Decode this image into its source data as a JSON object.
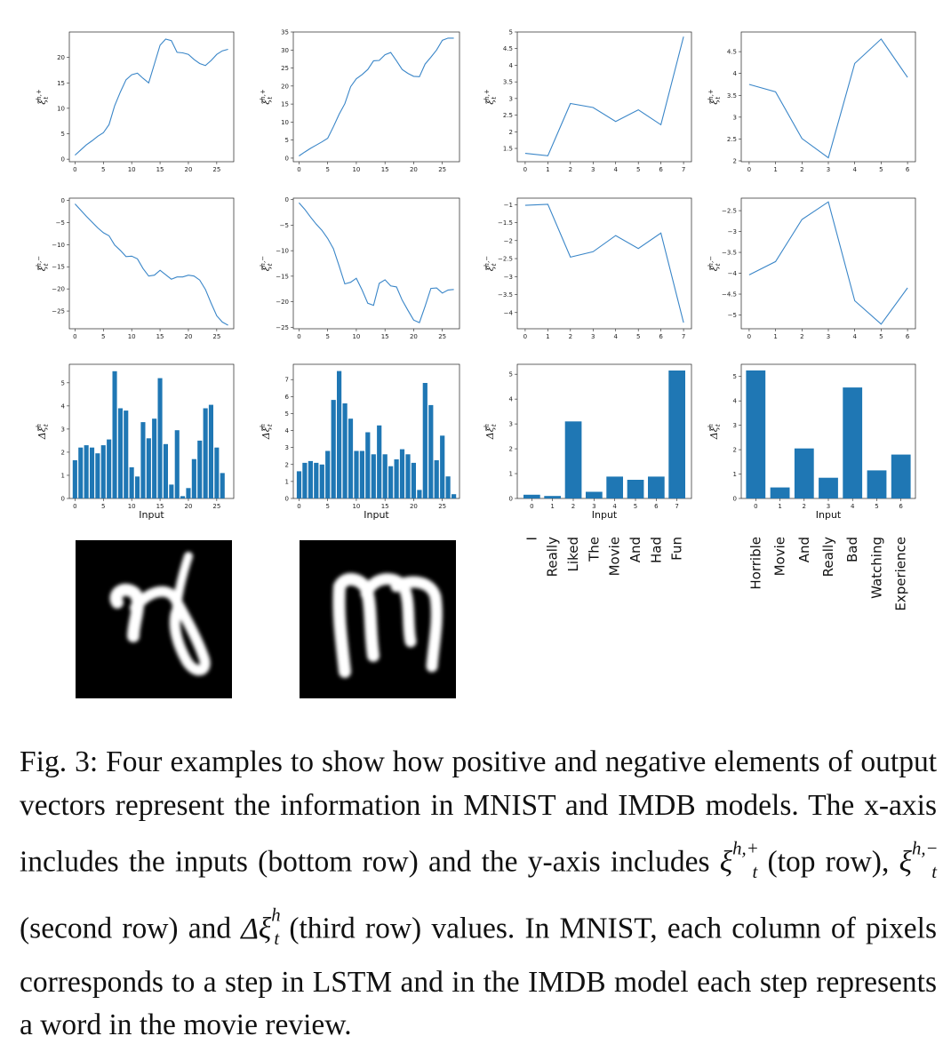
{
  "figure": {
    "y_labels": {
      "pos": "ξt h,+",
      "neg": "ξt h,−",
      "delta": "Δξt h"
    },
    "x_label": "Input",
    "line_color": "#3a86c8",
    "bar_color": "#1f77b4",
    "digit_images": [
      {
        "name": "handwritten-n-digit-image",
        "digit_label": "n"
      },
      {
        "name": "handwritten-m-digit-image",
        "digit_label": "m"
      }
    ],
    "words": [
      {
        "column": 2,
        "items": [
          "I",
          "Really",
          "Liked",
          "The",
          "Movie",
          "And",
          "Had",
          "Fun"
        ]
      },
      {
        "column": 3,
        "items": [
          "Horrible",
          "Movie",
          "And",
          "Really",
          "Bad",
          "Watching",
          "Experience"
        ]
      }
    ]
  },
  "chart_data": [
    {
      "type": "line",
      "row": "positive",
      "column": 0,
      "ylabel": "ξt h,+",
      "x": [
        0,
        1,
        2,
        3,
        4,
        5,
        6,
        7,
        8,
        9,
        10,
        11,
        12,
        13,
        14,
        15,
        16,
        17,
        18,
        19,
        20,
        21,
        22,
        23,
        24,
        25,
        26,
        27
      ],
      "values": [
        0.8,
        1.8,
        2.8,
        3.6,
        4.5,
        5.2,
        6.8,
        10.5,
        13.2,
        15.6,
        16.6,
        16.9,
        15.9,
        15.0,
        18.7,
        22.4,
        23.6,
        23.3,
        21.0,
        20.9,
        20.6,
        19.6,
        18.8,
        18.4,
        19.4,
        20.6,
        21.3,
        21.6
      ],
      "xlim": [
        -1,
        28
      ],
      "ylim": [
        -0.5,
        25
      ],
      "xticks": [
        0,
        5,
        10,
        15,
        20,
        25
      ],
      "yticks": [
        0,
        5,
        10,
        15,
        20
      ]
    },
    {
      "type": "line",
      "row": "positive",
      "column": 1,
      "ylabel": "ξt h,+",
      "x": [
        0,
        1,
        2,
        3,
        4,
        5,
        6,
        7,
        8,
        9,
        10,
        11,
        12,
        13,
        14,
        15,
        16,
        17,
        18,
        19,
        20,
        21,
        22,
        23,
        24,
        25,
        26,
        27
      ],
      "values": [
        0.6,
        1.7,
        2.7,
        3.6,
        4.5,
        5.5,
        8.7,
        12.2,
        15.1,
        19.8,
        22.0,
        23.2,
        24.6,
        27.0,
        27.1,
        28.7,
        29.3,
        27.0,
        24.6,
        23.5,
        22.7,
        22.6,
        26.1,
        28.0,
        30.0,
        32.7,
        33.3,
        33.3
      ],
      "xlim": [
        -1,
        28
      ],
      "ylim": [
        -1,
        35
      ],
      "xticks": [
        0,
        5,
        10,
        15,
        20,
        25
      ],
      "yticks": [
        0,
        5,
        10,
        15,
        20,
        25,
        30,
        35
      ]
    },
    {
      "type": "line",
      "row": "positive",
      "column": 2,
      "ylabel": "ξt h,+",
      "x": [
        0,
        1,
        2,
        3,
        4,
        5,
        6,
        7
      ],
      "values": [
        1.35,
        1.28,
        2.85,
        2.73,
        2.31,
        2.66,
        2.21,
        4.86
      ],
      "xlim": [
        -0.35,
        7.35
      ],
      "ylim": [
        1.1,
        5.0
      ],
      "xticks": [
        0,
        1,
        2,
        3,
        4,
        5,
        6,
        7
      ],
      "yticks": [
        1.5,
        2.0,
        2.5,
        3.0,
        3.5,
        4.0,
        4.5,
        5.0
      ]
    },
    {
      "type": "line",
      "row": "positive",
      "column": 3,
      "ylabel": "ξt h,+",
      "x": [
        0,
        1,
        2,
        3,
        4,
        5,
        6
      ],
      "values": [
        3.75,
        3.58,
        2.51,
        2.07,
        4.23,
        4.79,
        3.91
      ],
      "xlim": [
        -0.3,
        6.3
      ],
      "ylim": [
        1.98,
        4.95
      ],
      "xticks": [
        0,
        1,
        2,
        3,
        4,
        5,
        6
      ],
      "yticks": [
        2.0,
        2.5,
        3.0,
        3.5,
        4.0,
        4.5
      ]
    },
    {
      "type": "line",
      "row": "negative",
      "column": 0,
      "ylabel": "ξt h,−",
      "x": [
        0,
        1,
        2,
        3,
        4,
        5,
        6,
        7,
        8,
        9,
        10,
        11,
        12,
        13,
        14,
        15,
        16,
        17,
        18,
        19,
        20,
        21,
        22,
        23,
        24,
        25,
        26,
        27
      ],
      "values": [
        -0.8,
        -2.2,
        -3.6,
        -4.9,
        -6.2,
        -7.3,
        -8.0,
        -10.1,
        -11.3,
        -12.7,
        -12.6,
        -13.2,
        -15.4,
        -17.1,
        -16.9,
        -15.8,
        -16.8,
        -17.8,
        -17.3,
        -17.3,
        -16.9,
        -17.1,
        -18.0,
        -20.1,
        -23.2,
        -26.1,
        -27.5,
        -28.2
      ],
      "xlim": [
        -1,
        28
      ],
      "ylim": [
        -29,
        0.5
      ],
      "xticks": [
        0,
        5,
        10,
        15,
        20,
        25
      ],
      "yticks": [
        0,
        -5,
        -10,
        -15,
        -20,
        -25
      ]
    },
    {
      "type": "line",
      "row": "negative",
      "column": 1,
      "ylabel": "ξt h,−",
      "x": [
        0,
        1,
        2,
        3,
        4,
        5,
        6,
        7,
        8,
        9,
        10,
        11,
        12,
        13,
        14,
        15,
        16,
        17,
        18,
        19,
        20,
        21,
        22,
        23,
        24,
        25,
        26,
        27
      ],
      "values": [
        -0.6,
        -1.9,
        -3.4,
        -4.8,
        -6.0,
        -7.6,
        -9.6,
        -13.0,
        -16.5,
        -16.2,
        -15.4,
        -17.7,
        -20.3,
        -20.7,
        -16.4,
        -15.7,
        -16.9,
        -17.1,
        -19.7,
        -21.7,
        -23.6,
        -24.1,
        -20.9,
        -17.4,
        -17.3,
        -18.3,
        -17.7,
        -17.6
      ],
      "xlim": [
        -1,
        28
      ],
      "ylim": [
        -25.3,
        0.3
      ],
      "xticks": [
        0,
        5,
        10,
        15,
        20,
        25
      ],
      "yticks": [
        0,
        -5,
        -10,
        -15,
        -20,
        -25
      ]
    },
    {
      "type": "line",
      "row": "negative",
      "column": 2,
      "ylabel": "ξt h,−",
      "x": [
        0,
        1,
        2,
        3,
        4,
        5,
        6,
        7
      ],
      "values": [
        -1.02,
        -0.99,
        -2.46,
        -2.31,
        -1.86,
        -2.22,
        -1.79,
        -4.28
      ],
      "xlim": [
        -0.35,
        7.35
      ],
      "ylim": [
        -4.45,
        -0.82
      ],
      "xticks": [
        0,
        1,
        2,
        3,
        4,
        5,
        6,
        7
      ],
      "yticks": [
        -1.0,
        -1.5,
        -2.0,
        -2.5,
        -3.0,
        -3.5,
        -4.0
      ]
    },
    {
      "type": "line",
      "row": "negative",
      "column": 3,
      "ylabel": "ξt h,−",
      "x": [
        0,
        1,
        2,
        3,
        4,
        5,
        6
      ],
      "values": [
        -4.04,
        -3.72,
        -2.71,
        -2.29,
        -4.66,
        -5.22,
        -4.35
      ],
      "xlim": [
        -0.3,
        6.3
      ],
      "ylim": [
        -5.33,
        -2.2
      ],
      "xticks": [
        0,
        1,
        2,
        3,
        4,
        5,
        6
      ],
      "yticks": [
        -2.5,
        -3.0,
        -3.5,
        -4.0,
        -4.5,
        -5.0
      ]
    },
    {
      "type": "bar",
      "row": "delta",
      "column": 0,
      "ylabel": "Δξt h",
      "xlabel": "Input",
      "x": [
        0,
        1,
        2,
        3,
        4,
        5,
        6,
        7,
        8,
        9,
        10,
        11,
        12,
        13,
        14,
        15,
        16,
        17,
        18,
        19,
        20,
        21,
        22,
        23,
        24,
        25,
        26,
        27
      ],
      "values": [
        1.65,
        2.2,
        2.3,
        2.2,
        1.95,
        2.3,
        2.55,
        5.5,
        3.9,
        3.8,
        1.35,
        0.95,
        3.3,
        2.6,
        3.45,
        5.2,
        2.35,
        0.6,
        2.95,
        0.1,
        0.45,
        1.7,
        2.5,
        3.9,
        4.05,
        2.2,
        1.1,
        0.0
      ],
      "xlim": [
        -1,
        28
      ],
      "ylim": [
        0,
        5.8
      ],
      "xticks": [
        0,
        5,
        10,
        15,
        20,
        25
      ],
      "yticks": [
        0,
        1,
        2,
        3,
        4,
        5
      ]
    },
    {
      "type": "bar",
      "row": "delta",
      "column": 1,
      "ylabel": "Δξt h",
      "xlabel": "Input",
      "x": [
        0,
        1,
        2,
        3,
        4,
        5,
        6,
        7,
        8,
        9,
        10,
        11,
        12,
        13,
        14,
        15,
        16,
        17,
        18,
        19,
        20,
        21,
        22,
        23,
        24,
        25,
        26,
        27
      ],
      "values": [
        1.6,
        2.1,
        2.2,
        2.1,
        2.0,
        2.8,
        5.8,
        7.5,
        5.6,
        4.7,
        2.8,
        2.8,
        3.9,
        2.6,
        4.3,
        2.6,
        1.9,
        2.3,
        2.9,
        2.6,
        2.1,
        0.5,
        6.8,
        5.5,
        2.25,
        3.7,
        1.3,
        0.25
      ],
      "xlim": [
        -1,
        28
      ],
      "ylim": [
        0,
        7.9
      ],
      "xticks": [
        0,
        5,
        10,
        15,
        20,
        25
      ],
      "yticks": [
        0,
        1,
        2,
        3,
        4,
        5,
        6,
        7
      ]
    },
    {
      "type": "bar",
      "row": "delta",
      "column": 2,
      "ylabel": "Δξt h",
      "xlabel": "Input",
      "x": [
        0,
        1,
        2,
        3,
        4,
        5,
        6,
        7
      ],
      "categories": [
        "I",
        "Really",
        "Liked",
        "The",
        "Movie",
        "And",
        "Had",
        "Fun"
      ],
      "values": [
        0.15,
        0.1,
        3.1,
        0.27,
        0.88,
        0.75,
        0.88,
        5.15
      ],
      "xlim": [
        -0.7,
        7.7
      ],
      "ylim": [
        0,
        5.4
      ],
      "xticks": [
        0,
        1,
        2,
        3,
        4,
        5,
        6,
        7
      ],
      "yticks": [
        0,
        1,
        2,
        3,
        4,
        5
      ]
    },
    {
      "type": "bar",
      "row": "delta",
      "column": 3,
      "ylabel": "Δξt h",
      "xlabel": "Input",
      "x": [
        0,
        1,
        2,
        3,
        4,
        5,
        6
      ],
      "categories": [
        "Horrible",
        "Movie",
        "And",
        "Really",
        "Bad",
        "Watching",
        "Experience"
      ],
      "values": [
        5.25,
        0.45,
        2.05,
        0.85,
        4.55,
        1.15,
        1.8
      ],
      "xlim": [
        -0.6,
        6.6
      ],
      "ylim": [
        0,
        5.5
      ],
      "xticks": [
        0,
        1,
        2,
        3,
        4,
        5,
        6
      ],
      "yticks": [
        0,
        1,
        2,
        3,
        4,
        5
      ]
    }
  ],
  "caption": {
    "fig_label": "Fig. 3:",
    "part1": "Four examples to show how positive and negative elements of output vectors represent the information in MNIST and IMDB models. The x-axis includes the inputs (bottom row) and the y-axis includes",
    "xi_plus": "ξ",
    "xi_plus_sup": "h,+",
    "xi_plus_sub": "t",
    "part2": "(top row),",
    "xi_minus": "ξ",
    "xi_minus_sup": "h,−",
    "xi_minus_sub": "t",
    "part3": "(second row) and",
    "delta_xi": "Δξ",
    "delta_xi_sup": "h",
    "delta_xi_sub": "t",
    "part4": "(third row) values. In MNIST, each column of pixels corresponds to a step in LSTM and in the IMDB model each step represents a word in the movie review."
  }
}
